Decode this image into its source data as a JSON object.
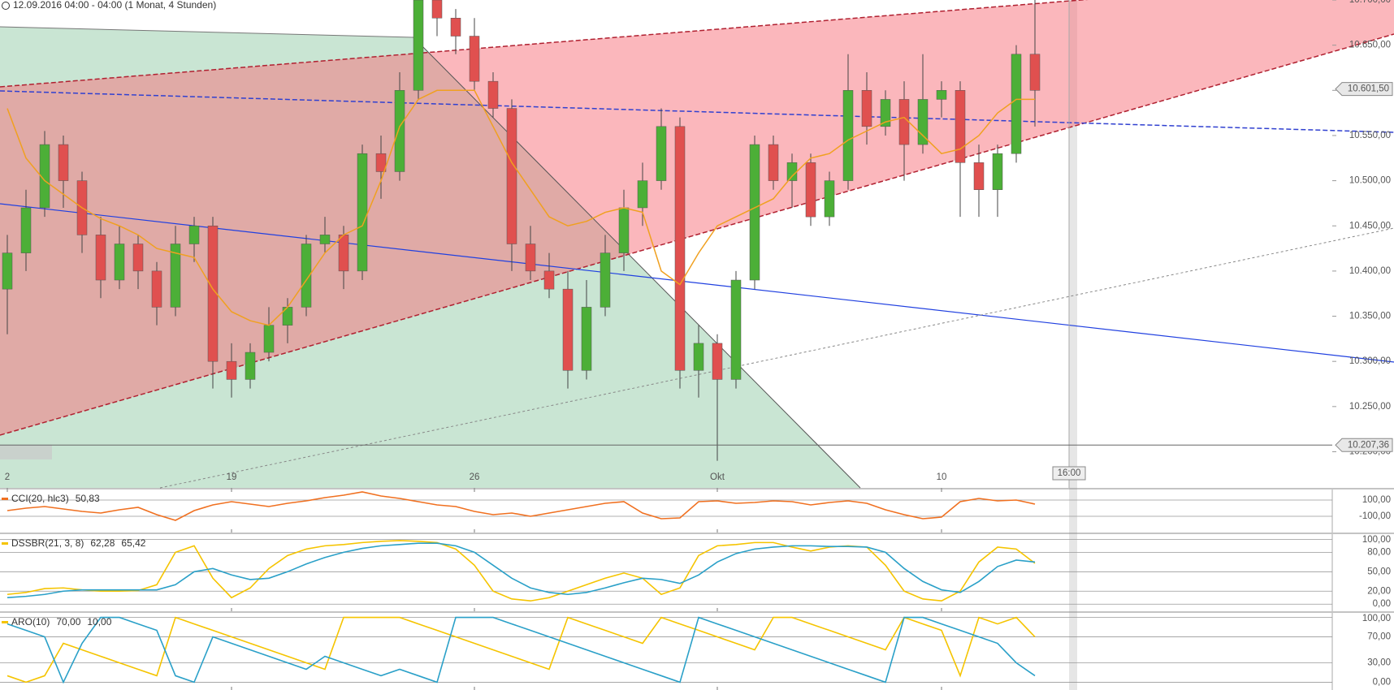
{
  "chart_data": [
    {
      "type": "candlestick",
      "title": "12.09.2016 04:00 - 04:00 (1 Monat, 4 Stunden)",
      "categories": [
        "2",
        null,
        null,
        null,
        null,
        null,
        null,
        null,
        null,
        null,
        null,
        null,
        "19",
        null,
        null,
        null,
        null,
        null,
        null,
        null,
        null,
        null,
        null,
        null,
        null,
        "26",
        null,
        null,
        null,
        null,
        null,
        null,
        null,
        null,
        null,
        null,
        null,
        null,
        "Okt",
        null,
        null,
        null,
        null,
        null,
        null,
        null,
        null,
        null,
        null,
        null,
        "10",
        null,
        null,
        null,
        null,
        null
      ],
      "open": [
        10380,
        10420,
        10470,
        10540,
        10500,
        10440,
        10390,
        10430,
        10400,
        10360,
        10430,
        10450,
        10300,
        10280,
        10310,
        10340,
        10360,
        10430,
        10440,
        10400,
        10530,
        10510,
        10600,
        10700,
        10680,
        10660,
        10610,
        10580,
        10430,
        10400,
        10380,
        10290,
        10360,
        10420,
        10470,
        10500,
        10560,
        10290,
        10320,
        10280,
        10390,
        10540,
        10500,
        10520,
        10460,
        10500,
        10600,
        10560,
        10590,
        10540,
        10590,
        10600,
        10520,
        10490,
        10530,
        10640
      ],
      "high": [
        10440,
        10490,
        10555,
        10550,
        10510,
        10460,
        10450,
        10440,
        10410,
        10450,
        10460,
        10460,
        10320,
        10320,
        10360,
        10370,
        10440,
        10460,
        10450,
        10540,
        10550,
        10620,
        10700,
        10705,
        10690,
        10680,
        10620,
        10590,
        10450,
        10420,
        10400,
        10390,
        10440,
        10490,
        10520,
        10580,
        10570,
        10340,
        10330,
        10400,
        10550,
        10550,
        10530,
        10530,
        10510,
        10640,
        10620,
        10600,
        10610,
        10640,
        10610,
        10610,
        10540,
        10540,
        10650,
        10700
      ],
      "low": [
        10330,
        10400,
        10460,
        10470,
        10420,
        10370,
        10380,
        10380,
        10340,
        10350,
        10410,
        10270,
        10260,
        10270,
        10300,
        10320,
        10350,
        10420,
        10380,
        10390,
        10480,
        10500,
        10590,
        10660,
        10640,
        10600,
        10570,
        10400,
        10390,
        10370,
        10270,
        10280,
        10350,
        10400,
        10450,
        10490,
        10270,
        10260,
        10190,
        10270,
        10380,
        10490,
        10470,
        10450,
        10450,
        10490,
        10540,
        10550,
        10500,
        10530,
        10570,
        10460,
        10460,
        10460,
        10520,
        10560
      ],
      "close": [
        10420,
        10470,
        10540,
        10500,
        10440,
        10390,
        10430,
        10400,
        10360,
        10430,
        10450,
        10300,
        10280,
        10310,
        10340,
        10360,
        10430,
        10440,
        10400,
        10530,
        10510,
        10600,
        10700,
        10680,
        10660,
        10610,
        10580,
        10430,
        10400,
        10380,
        10290,
        10360,
        10420,
        10470,
        10500,
        10560,
        10290,
        10320,
        10280,
        10390,
        10540,
        10500,
        10520,
        10460,
        10500,
        10600,
        10560,
        10590,
        10540,
        10590,
        10600,
        10520,
        10490,
        10530,
        10640,
        10600
      ],
      "up_color": "#4caf37",
      "down_color": "#e0504f",
      "overlay": {
        "color": "#f0a020",
        "values": [
          10580,
          10525,
          10500,
          10485,
          10470,
          10458,
          10450,
          10440,
          10425,
          10420,
          10415,
          10380,
          10355,
          10345,
          10340,
          10360,
          10390,
          10420,
          10440,
          10450,
          10500,
          10560,
          10590,
          10600,
          10600,
          10600,
          10560,
          10520,
          10490,
          10460,
          10450,
          10455,
          10465,
          10470,
          10465,
          10400,
          10385,
          10420,
          10450,
          10460,
          10470,
          10480,
          10505,
          10525,
          10530,
          10545,
          10555,
          10565,
          10570,
          10550,
          10530,
          10535,
          10550,
          10575,
          10590,
          10590
        ]
      },
      "ylim": [
        10160,
        10700
      ],
      "yticks": [
        {
          "value": 10200,
          "label": "10.200,00"
        },
        {
          "value": 10250,
          "label": "10.250,00"
        },
        {
          "value": 10300,
          "label": "10.300,00"
        },
        {
          "value": 10350,
          "label": "10.350,00"
        },
        {
          "value": 10400,
          "label": "10.400,00"
        },
        {
          "value": 10450,
          "label": "10.450,00"
        },
        {
          "value": 10500,
          "label": "10.500,00"
        },
        {
          "value": 10550,
          "label": "10.550,00"
        },
        {
          "value": 10600,
          "label": "10.600,00"
        },
        {
          "value": 10650,
          "label": "10.650,00"
        },
        {
          "value": 10700,
          "label": "10.700,00"
        }
      ],
      "price_tags": [
        {
          "value": 10601.5,
          "label": "10.601,50"
        },
        {
          "value": 10207.36,
          "label": "10.207,36"
        }
      ],
      "cursor_label": "16:00"
    },
    {
      "type": "line",
      "title": "CCI(20, hlc3)",
      "series": [
        {
          "color": "#f07020",
          "readout": "50,83",
          "values": [
            -30,
            0,
            20,
            -10,
            -40,
            -60,
            -20,
            10,
            -80,
            -150,
            -30,
            40,
            80,
            50,
            20,
            60,
            90,
            130,
            160,
            200,
            150,
            120,
            80,
            40,
            20,
            -40,
            -80,
            -60,
            -100,
            -60,
            -20,
            20,
            60,
            80,
            -60,
            -130,
            -120,
            80,
            90,
            60,
            70,
            90,
            80,
            40,
            70,
            90,
            60,
            -20,
            -80,
            -130,
            -110,
            80,
            120,
            90,
            100,
            50
          ]
        }
      ],
      "ylim": [
        -300,
        230
      ],
      "yticks": [
        {
          "value": 100,
          "label": "100,00"
        },
        {
          "value": -100,
          "label": "-100,00"
        }
      ]
    },
    {
      "type": "line",
      "title": "DSSBR(21, 3, 8)",
      "series": [
        {
          "color": "#f5c400",
          "readout": "62,28",
          "values": [
            15,
            18,
            24,
            25,
            22,
            20,
            20,
            21,
            30,
            80,
            90,
            40,
            10,
            25,
            55,
            75,
            85,
            90,
            92,
            95,
            97,
            98,
            97,
            95,
            85,
            60,
            20,
            8,
            5,
            10,
            20,
            30,
            40,
            48,
            40,
            15,
            25,
            75,
            90,
            92,
            95,
            95,
            88,
            82,
            88,
            90,
            88,
            60,
            20,
            8,
            5,
            20,
            65,
            88,
            85,
            63
          ]
        },
        {
          "color": "#2aa0c8",
          "readout": "65,42",
          "values": [
            10,
            12,
            15,
            20,
            22,
            22,
            22,
            22,
            22,
            30,
            50,
            55,
            45,
            38,
            40,
            50,
            62,
            72,
            80,
            86,
            90,
            92,
            94,
            94,
            90,
            80,
            60,
            40,
            25,
            18,
            15,
            18,
            25,
            33,
            40,
            38,
            32,
            45,
            65,
            78,
            85,
            88,
            90,
            90,
            89,
            89,
            88,
            80,
            55,
            35,
            22,
            18,
            35,
            58,
            68,
            65
          ]
        }
      ],
      "ylim": [
        -11,
        108
      ],
      "yticks": [
        {
          "value": 0,
          "label": "0,00"
        },
        {
          "value": 20,
          "label": "20,00"
        },
        {
          "value": 50,
          "label": "50,00"
        },
        {
          "value": 80,
          "label": "80,00"
        },
        {
          "value": 100,
          "label": "100,00"
        }
      ]
    },
    {
      "type": "line",
      "title": "ARO(10)",
      "series": [
        {
          "color": "#f5c400",
          "readout": "70,00",
          "values": [
            10,
            0,
            10,
            60,
            50,
            40,
            30,
            20,
            10,
            100,
            90,
            80,
            70,
            60,
            50,
            40,
            30,
            20,
            100,
            100,
            100,
            100,
            90,
            80,
            70,
            60,
            50,
            40,
            30,
            20,
            100,
            90,
            80,
            70,
            60,
            100,
            90,
            80,
            70,
            60,
            50,
            100,
            100,
            90,
            80,
            70,
            60,
            50,
            100,
            90,
            80,
            10,
            100,
            90,
            100,
            70
          ]
        },
        {
          "color": "#2aa0c8",
          "readout": "10,00",
          "values": [
            90,
            80,
            70,
            0,
            60,
            100,
            100,
            90,
            80,
            10,
            0,
            70,
            60,
            50,
            40,
            30,
            20,
            40,
            30,
            20,
            10,
            20,
            10,
            0,
            100,
            100,
            100,
            90,
            80,
            70,
            60,
            50,
            40,
            30,
            20,
            10,
            0,
            100,
            90,
            80,
            70,
            60,
            50,
            40,
            30,
            20,
            10,
            0,
            100,
            100,
            90,
            80,
            70,
            60,
            30,
            10
          ]
        }
      ],
      "ylim": [
        -12,
        107
      ],
      "yticks": [
        {
          "value": 0,
          "label": "0,00"
        },
        {
          "value": 30,
          "label": "30,00"
        },
        {
          "value": 70,
          "label": "70,00"
        },
        {
          "value": 100,
          "label": "100,00"
        }
      ]
    }
  ]
}
